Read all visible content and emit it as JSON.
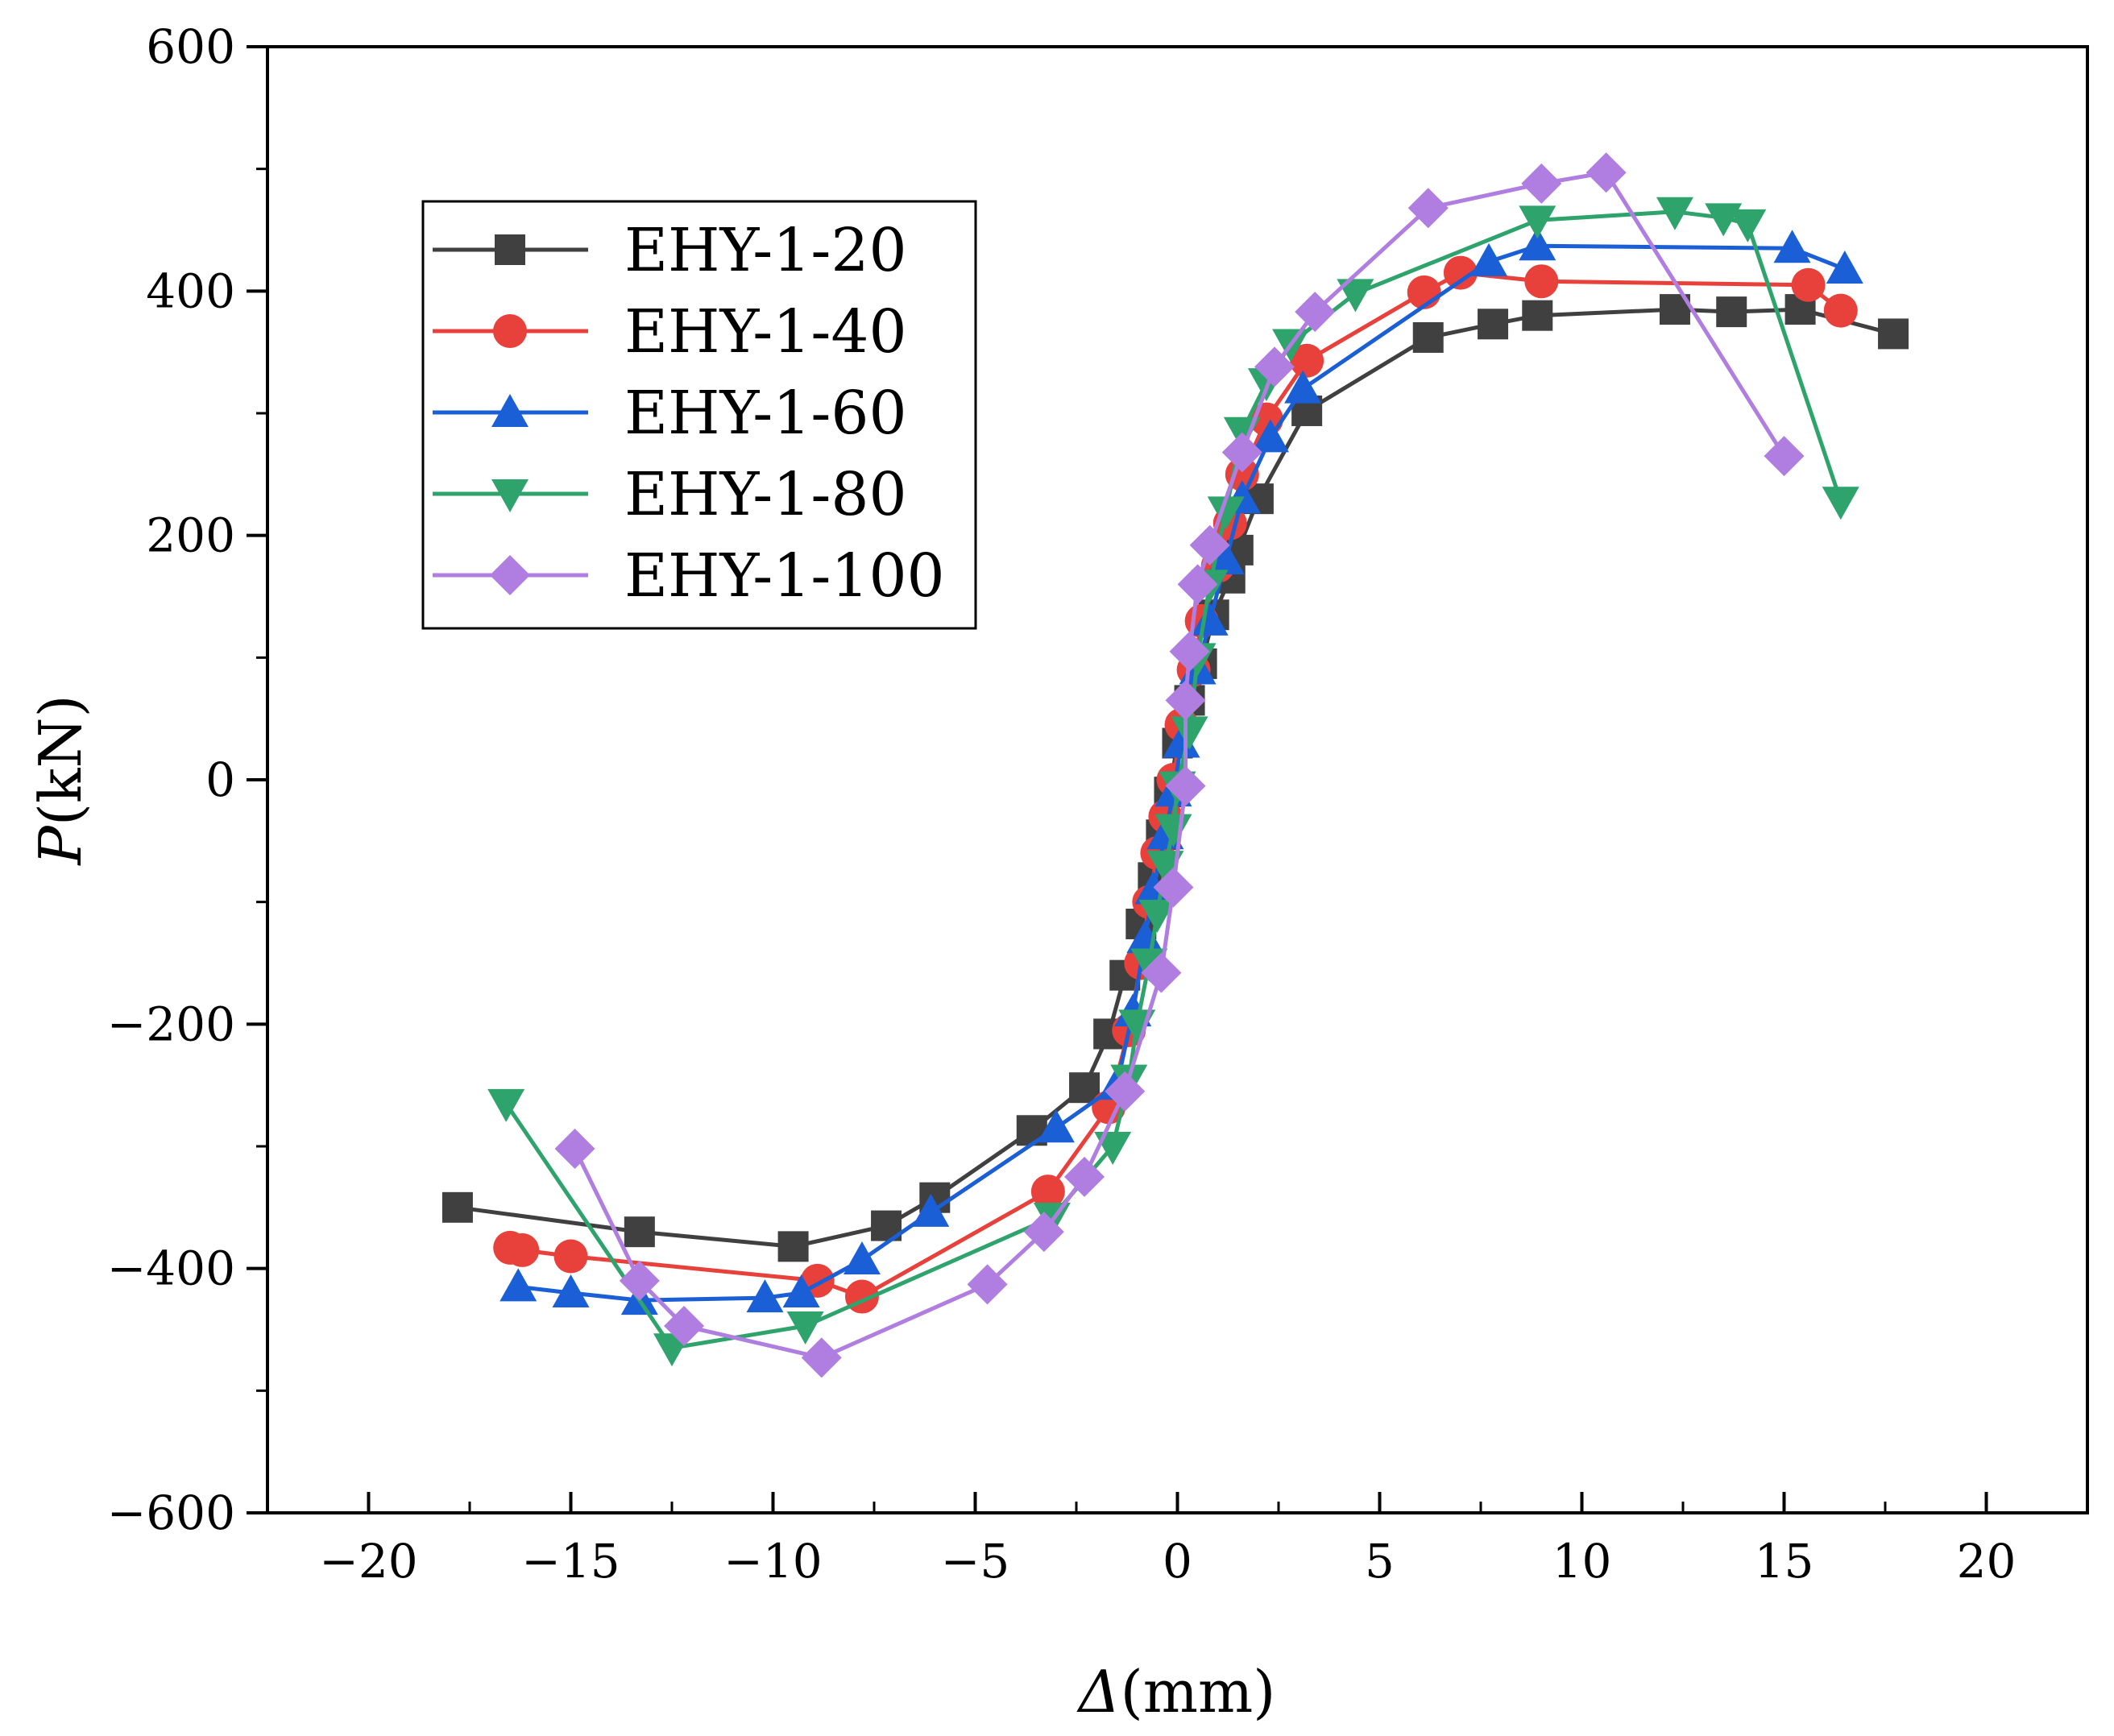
{
  "chart_data": {
    "type": "line",
    "xlabel": {
      "symbol": "Δ",
      "unit": "(mm)"
    },
    "ylabel": {
      "symbol": "P",
      "unit": "(kN)"
    },
    "xlim": [
      -22.5,
      22.5
    ],
    "ylim": [
      -600,
      600
    ],
    "xticks": [
      -20,
      -15,
      -10,
      -5,
      0,
      5,
      10,
      15,
      20
    ],
    "xtick_labels": [
      "−20",
      "−15",
      "−10",
      "−5",
      "0",
      "5",
      "10",
      "15",
      "20"
    ],
    "yticks": [
      -600,
      -400,
      -200,
      0,
      200,
      400,
      600
    ],
    "ytick_labels": [
      "−600",
      "−400",
      "−200",
      "0",
      "200",
      "400",
      "600"
    ],
    "legend_position": "upper-left",
    "series": [
      {
        "name": "EHY-1-20",
        "color": "#404040",
        "marker": "square",
        "points": [
          [
            -17.8,
            -350
          ],
          [
            -13.3,
            -370
          ],
          [
            -9.5,
            -382
          ],
          [
            -7.2,
            -365
          ],
          [
            -6.0,
            -342
          ],
          [
            -3.6,
            -287
          ],
          [
            -2.3,
            -252
          ],
          [
            -1.7,
            -208
          ],
          [
            -1.3,
            -160
          ],
          [
            -0.9,
            -118
          ],
          [
            -0.6,
            -80
          ],
          [
            -0.4,
            -45
          ],
          [
            -0.2,
            -10
          ],
          [
            0.0,
            30
          ],
          [
            0.3,
            65
          ],
          [
            0.6,
            95
          ],
          [
            0.9,
            135
          ],
          [
            1.3,
            165
          ],
          [
            1.5,
            188
          ],
          [
            2.0,
            230
          ],
          [
            3.2,
            302
          ],
          [
            6.2,
            362
          ],
          [
            7.8,
            373
          ],
          [
            8.9,
            380
          ],
          [
            12.3,
            385
          ],
          [
            13.7,
            383
          ],
          [
            15.4,
            385
          ],
          [
            17.7,
            365
          ]
        ]
      },
      {
        "name": "EHY-1-40",
        "color": "#e8403a",
        "marker": "circle",
        "points": [
          [
            -16.5,
            -383
          ],
          [
            -16.2,
            -385
          ],
          [
            -15.0,
            -390
          ],
          [
            -8.9,
            -410
          ],
          [
            -7.8,
            -423
          ],
          [
            -3.2,
            -337
          ],
          [
            -1.7,
            -268
          ],
          [
            -1.2,
            -205
          ],
          [
            -0.9,
            -150
          ],
          [
            -0.7,
            -100
          ],
          [
            -0.5,
            -60
          ],
          [
            -0.3,
            -30
          ],
          [
            -0.1,
            0
          ],
          [
            0.1,
            45
          ],
          [
            0.4,
            90
          ],
          [
            0.6,
            130
          ],
          [
            1.0,
            175
          ],
          [
            1.3,
            210
          ],
          [
            1.6,
            250
          ],
          [
            2.2,
            295
          ],
          [
            3.2,
            343
          ],
          [
            6.1,
            399
          ],
          [
            7.0,
            415
          ],
          [
            9.0,
            408
          ],
          [
            15.6,
            405
          ],
          [
            16.4,
            384
          ]
        ]
      },
      {
        "name": "EHY-1-60",
        "color": "#1a5fd6",
        "marker": "triangle-up",
        "points": [
          [
            -16.3,
            -415
          ],
          [
            -15.0,
            -420
          ],
          [
            -13.3,
            -426
          ],
          [
            -10.2,
            -424
          ],
          [
            -9.3,
            -420
          ],
          [
            -7.8,
            -393
          ],
          [
            -6.1,
            -354
          ],
          [
            -3.0,
            -285
          ],
          [
            -1.5,
            -250
          ],
          [
            -1.1,
            -190
          ],
          [
            -0.8,
            -130
          ],
          [
            -0.6,
            -90
          ],
          [
            -0.3,
            -45
          ],
          [
            -0.1,
            -10
          ],
          [
            0.1,
            30
          ],
          [
            0.5,
            90
          ],
          [
            0.8,
            130
          ],
          [
            1.2,
            180
          ],
          [
            1.6,
            230
          ],
          [
            2.3,
            280
          ],
          [
            3.1,
            320
          ],
          [
            7.7,
            424
          ],
          [
            8.9,
            437
          ],
          [
            15.2,
            435
          ],
          [
            16.5,
            418
          ]
        ]
      },
      {
        "name": "EHY-1-80",
        "color": "#2ea36c",
        "marker": "triangle-down",
        "points": [
          [
            -16.6,
            -265
          ],
          [
            -12.5,
            -465
          ],
          [
            -9.2,
            -447
          ],
          [
            -3.1,
            -358
          ],
          [
            -1.6,
            -300
          ],
          [
            -1.2,
            -245
          ],
          [
            -1.0,
            -200
          ],
          [
            -0.7,
            -150
          ],
          [
            -0.5,
            -110
          ],
          [
            -0.3,
            -70
          ],
          [
            -0.1,
            -40
          ],
          [
            0.0,
            -5
          ],
          [
            0.3,
            40
          ],
          [
            0.5,
            100
          ],
          [
            0.8,
            160
          ],
          [
            1.2,
            220
          ],
          [
            1.6,
            285
          ],
          [
            2.2,
            325
          ],
          [
            2.8,
            357
          ],
          [
            4.4,
            398
          ],
          [
            8.9,
            458
          ],
          [
            12.3,
            465
          ],
          [
            13.5,
            460
          ],
          [
            14.1,
            455
          ],
          [
            16.4,
            228
          ]
        ]
      },
      {
        "name": "EHY-1-100",
        "color": "#b07de0",
        "marker": "diamond",
        "points": [
          [
            -14.9,
            -302
          ],
          [
            -13.3,
            -410
          ],
          [
            -12.2,
            -447
          ],
          [
            -8.8,
            -473
          ],
          [
            -4.7,
            -413
          ],
          [
            -3.3,
            -370
          ],
          [
            -2.3,
            -325
          ],
          [
            -1.3,
            -255
          ],
          [
            -0.4,
            -158
          ],
          [
            -0.1,
            -88
          ],
          [
            0.2,
            -5
          ],
          [
            0.2,
            65
          ],
          [
            0.3,
            105
          ],
          [
            0.5,
            160
          ],
          [
            0.8,
            192
          ],
          [
            1.6,
            268
          ],
          [
            2.4,
            338
          ],
          [
            3.4,
            383
          ],
          [
            6.2,
            468
          ],
          [
            9.0,
            488
          ],
          [
            10.6,
            497
          ],
          [
            15.0,
            265
          ]
        ]
      }
    ]
  }
}
